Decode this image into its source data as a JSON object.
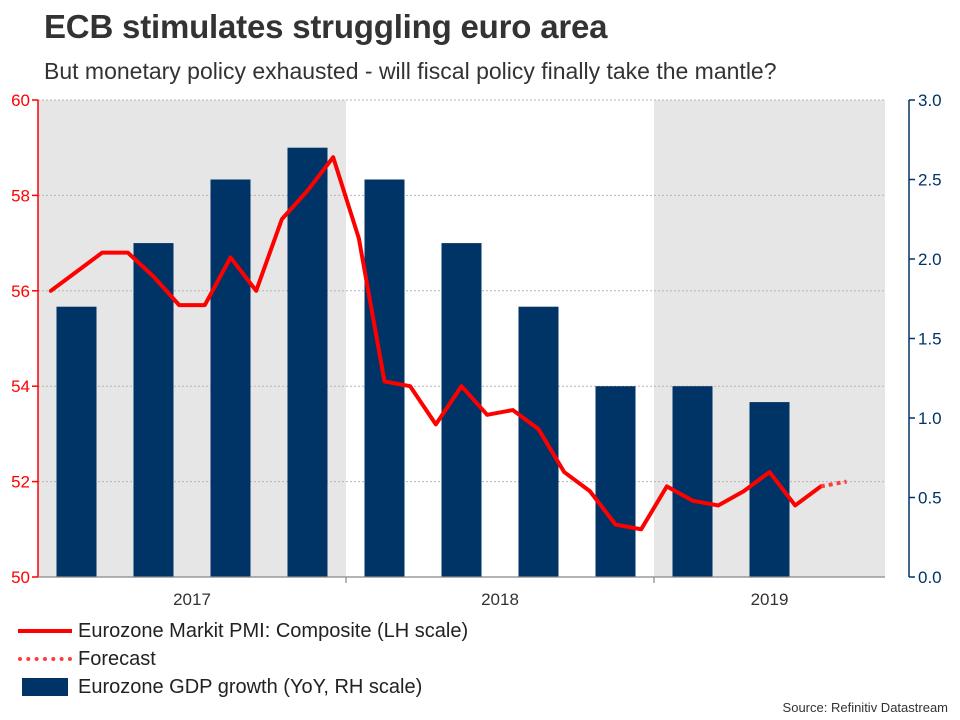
{
  "title": "ECB stimulates struggling euro area",
  "subtitle": "But monetary policy exhausted - will fiscal policy finally take the mantle?",
  "source": "Source: Refinitiv Datastream",
  "legend": {
    "pmi": "Eurozone Markit PMI: Composite (LH scale)",
    "forecast": "Forecast",
    "gdp": "Eurozone GDP growth (YoY, RH scale)"
  },
  "colors": {
    "pmi_line": "#ff0000",
    "forecast_line": "#ff3b3b",
    "gdp_bar": "#003366",
    "left_axis": "#ff0000",
    "right_axis": "#003366",
    "shade": "#e6e6e6"
  },
  "chart_data": {
    "type": "bar+line",
    "title": "ECB stimulates struggling euro area",
    "x_range": [
      0,
      33
    ],
    "years": [
      {
        "label": "2017",
        "start": 0,
        "end": 12
      },
      {
        "label": "2018",
        "start": 12,
        "end": 24
      },
      {
        "label": "2019",
        "start": 24,
        "end": 33
      }
    ],
    "shaded_years": [
      "2017",
      "2019"
    ],
    "left_axis": {
      "label": "Eurozone Markit PMI: Composite (LH scale)",
      "ylim": [
        50,
        60
      ],
      "ticks": [
        50,
        52,
        54,
        56,
        58,
        60
      ]
    },
    "right_axis": {
      "label": "Eurozone GDP growth (YoY, RH scale)",
      "ylim": [
        0.0,
        3.0
      ],
      "ticks": [
        0.0,
        0.5,
        1.0,
        1.5,
        2.0,
        2.5,
        3.0
      ],
      "tick_labels": [
        "0.0",
        "0.5",
        "1.0",
        "1.5",
        "2.0",
        "2.5",
        "3.0"
      ]
    },
    "gdp_series": {
      "name": "Eurozone GDP growth (YoY, RH scale)",
      "quarters": [
        "Q1 2017",
        "Q2 2017",
        "Q3 2017",
        "Q4 2017",
        "Q1 2018",
        "Q2 2018",
        "Q3 2018",
        "Q4 2018",
        "Q1 2019",
        "Q2 2019"
      ],
      "x": [
        1.5,
        4.5,
        7.5,
        10.5,
        13.5,
        16.5,
        19.5,
        22.5,
        25.5,
        28.5
      ],
      "values": [
        1.7,
        2.1,
        2.5,
        2.7,
        2.5,
        2.1,
        1.7,
        1.2,
        1.2,
        1.1
      ]
    },
    "pmi_series": {
      "name": "Eurozone Markit PMI: Composite (LH scale)",
      "x": [
        0.5,
        1.5,
        2.5,
        3.5,
        4.5,
        5.5,
        6.5,
        7.5,
        8.5,
        9.5,
        10.5,
        11.5,
        12.5,
        13.5,
        14.5,
        15.5,
        16.5,
        17.5,
        18.5,
        19.5,
        20.5,
        21.5,
        22.5,
        23.5,
        24.5,
        25.5,
        26.5,
        27.5,
        28.5,
        29.5,
        30.5,
        31.5
      ],
      "values": [
        56.0,
        56.4,
        56.8,
        56.8,
        56.3,
        55.7,
        55.7,
        56.7,
        56.0,
        57.5,
        58.1,
        58.8,
        57.1,
        54.1,
        54.0,
        53.2,
        54.0,
        53.4,
        53.5,
        53.1,
        52.2,
        51.8,
        51.1,
        51.0,
        51.9,
        51.6,
        51.5,
        51.8,
        52.2,
        51.5,
        51.9,
        52.0
      ],
      "forecast_start_index": 30
    }
  }
}
